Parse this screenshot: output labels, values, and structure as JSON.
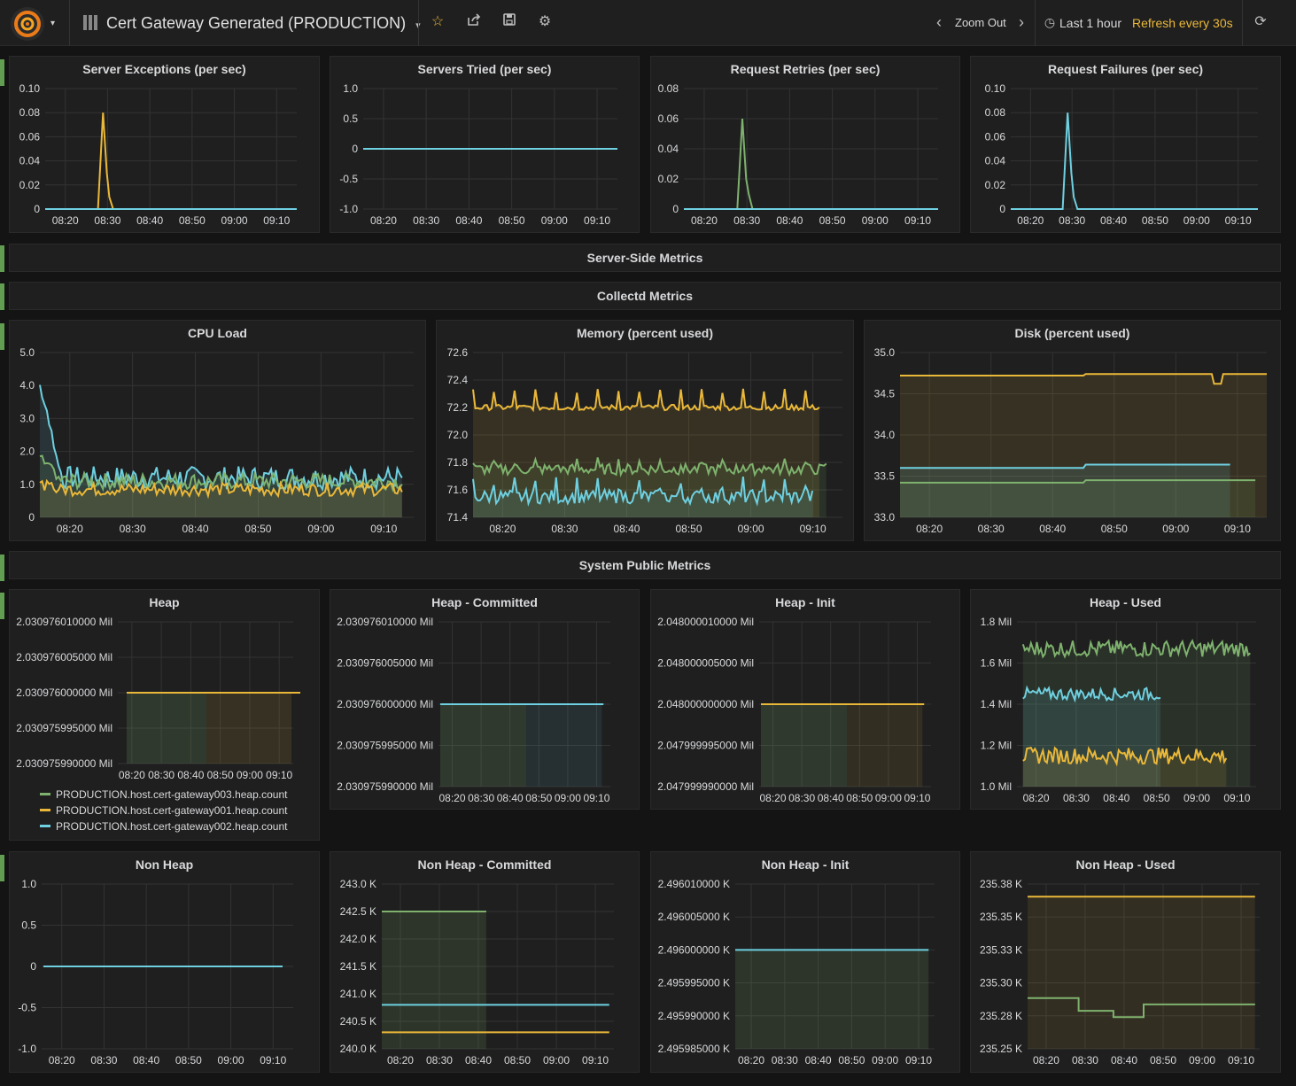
{
  "navbar": {
    "title": "Cert Gateway Generated (PRODUCTION)",
    "zoom_out": "Zoom Out",
    "time_range": "Last 1 hour",
    "refresh": "Refresh every 30s"
  },
  "colors": {
    "green": "#7eb26d",
    "yellow": "#eab839",
    "blue": "#6ed0e0",
    "accent": "#eb7b18"
  },
  "rows": {
    "server_side": "Server-Side Metrics",
    "collectd": "Collectd Metrics",
    "system_public": "System Public Metrics"
  },
  "legend": [
    {
      "label": "PRODUCTION.host.cert-gateway003.heap.count",
      "color": "#7eb26d"
    },
    {
      "label": "PRODUCTION.host.cert-gateway001.heap.count",
      "color": "#eab839"
    },
    {
      "label": "PRODUCTION.host.cert-gateway002.heap.count",
      "color": "#6ed0e0"
    }
  ],
  "chart_data": [
    {
      "id": "server-exceptions",
      "type": "line",
      "title": "Server Exceptions (per sec)",
      "x": [
        "08:20",
        "08:30",
        "08:40",
        "08:50",
        "09:00",
        "09:10"
      ],
      "y_ticks": [
        "0.10",
        "0.08",
        "0.06",
        "0.04",
        "0.02",
        "0"
      ],
      "ylim": [
        0,
        0.1
      ],
      "series": [
        {
          "color": "#eab839",
          "points": [
            [
              0,
              0
            ],
            [
              0.21,
              0
            ],
            [
              0.23,
              0.08
            ],
            [
              0.245,
              0.03
            ],
            [
              0.255,
              0.01
            ],
            [
              0.27,
              0
            ],
            [
              1,
              0
            ]
          ]
        },
        {
          "color": "#6ed0e0",
          "points": [
            [
              0,
              0
            ],
            [
              1,
              0
            ]
          ]
        }
      ]
    },
    {
      "id": "servers-tried",
      "type": "line",
      "title": "Servers Tried (per sec)",
      "x": [
        "08:20",
        "08:30",
        "08:40",
        "08:50",
        "09:00",
        "09:10"
      ],
      "y_ticks": [
        "1.0",
        "0.5",
        "0",
        "-0.5",
        "-1.0"
      ],
      "ylim": [
        -1,
        1
      ],
      "series": [
        {
          "color": "#6ed0e0",
          "points": [
            [
              0,
              0
            ],
            [
              1,
              0
            ]
          ]
        }
      ]
    },
    {
      "id": "request-retries",
      "type": "line",
      "title": "Request Retries (per sec)",
      "x": [
        "08:20",
        "08:30",
        "08:40",
        "08:50",
        "09:00",
        "09:10"
      ],
      "y_ticks": [
        "0.08",
        "0.06",
        "0.04",
        "0.02",
        "0"
      ],
      "ylim": [
        0,
        0.08
      ],
      "series": [
        {
          "color": "#7eb26d",
          "points": [
            [
              0,
              0
            ],
            [
              0.21,
              0
            ],
            [
              0.23,
              0.06
            ],
            [
              0.245,
              0.02
            ],
            [
              0.255,
              0.01
            ],
            [
              0.27,
              0
            ],
            [
              1,
              0
            ]
          ]
        },
        {
          "color": "#6ed0e0",
          "points": [
            [
              0,
              0
            ],
            [
              1,
              0
            ]
          ]
        }
      ]
    },
    {
      "id": "request-failures",
      "type": "line",
      "title": "Request Failures (per sec)",
      "x": [
        "08:20",
        "08:30",
        "08:40",
        "08:50",
        "09:00",
        "09:10"
      ],
      "y_ticks": [
        "0.10",
        "0.08",
        "0.06",
        "0.04",
        "0.02",
        "0"
      ],
      "ylim": [
        0,
        0.1
      ],
      "series": [
        {
          "color": "#6ed0e0",
          "points": [
            [
              0,
              0
            ],
            [
              0.21,
              0
            ],
            [
              0.23,
              0.08
            ],
            [
              0.245,
              0.03
            ],
            [
              0.255,
              0.01
            ],
            [
              0.27,
              0
            ],
            [
              1,
              0
            ]
          ]
        }
      ]
    },
    {
      "id": "cpu-load",
      "type": "area",
      "title": "CPU Load",
      "x": [
        "08:20",
        "08:30",
        "08:40",
        "08:50",
        "09:00",
        "09:10"
      ],
      "y_ticks": [
        "5.0",
        "4.0",
        "3.0",
        "2.0",
        "1.0",
        "0"
      ],
      "ylim": [
        0,
        5
      ],
      "series": [
        {
          "color": "#6ed0e0",
          "base": 1.2,
          "noise": 0.35,
          "start": 4.0
        },
        {
          "color": "#7eb26d",
          "base": 1.1,
          "noise": 0.25,
          "start": 1.8
        },
        {
          "color": "#eab839",
          "base": 0.85,
          "noise": 0.2,
          "start": 1.0
        }
      ]
    },
    {
      "id": "memory",
      "type": "area",
      "title": "Memory (percent used)",
      "x": [
        "08:20",
        "08:30",
        "08:40",
        "08:50",
        "09:00",
        "09:10"
      ],
      "y_ticks": [
        "72.6",
        "72.4",
        "72.2",
        "72.0",
        "71.8",
        "71.6",
        "71.4"
      ],
      "ylim": [
        71.4,
        72.6
      ],
      "series": [
        {
          "color": "#eab839",
          "base": 72.2,
          "noise": 0.02,
          "spikes": 0.12
        },
        {
          "color": "#7eb26d",
          "base": 71.75,
          "noise": 0.04,
          "spikes": 0.05
        },
        {
          "color": "#6ed0e0",
          "base": 71.55,
          "noise": 0.05,
          "spikes": 0.1
        }
      ]
    },
    {
      "id": "disk",
      "type": "area",
      "title": "Disk (percent used)",
      "x": [
        "08:20",
        "08:30",
        "08:40",
        "08:50",
        "09:00",
        "09:10"
      ],
      "y_ticks": [
        "35.0",
        "34.5",
        "34.0",
        "33.5",
        "33.0"
      ],
      "ylim": [
        33,
        35
      ],
      "series": [
        {
          "color": "#eab839",
          "base": 34.72,
          "noise": 0,
          "step": 0.02
        },
        {
          "color": "#6ed0e0",
          "base": 33.6,
          "noise": 0,
          "step": 0.04
        },
        {
          "color": "#7eb26d",
          "base": 33.42,
          "noise": 0,
          "step": 0.03
        }
      ]
    },
    {
      "id": "heap",
      "type": "area",
      "title": "Heap",
      "x": [
        "08:20",
        "08:30",
        "08:40",
        "08:50",
        "09:00",
        "09:10"
      ],
      "y_ticks": [
        "2.030976010000 Mil",
        "2.030976005000 Mil",
        "2.030976000000 Mil",
        "2.030975995000 Mil",
        "2.030975990000 Mil"
      ]
    },
    {
      "id": "heap-committed",
      "type": "area",
      "title": "Heap - Committed",
      "x": [
        "08:20",
        "08:30",
        "08:40",
        "08:50",
        "09:00",
        "09:10"
      ],
      "y_ticks": [
        "2.030976010000 Mil",
        "2.030976005000 Mil",
        "2.030976000000 Mil",
        "2.030975995000 Mil",
        "2.030975990000 Mil"
      ]
    },
    {
      "id": "heap-init",
      "type": "area",
      "title": "Heap - Init",
      "x": [
        "08:20",
        "08:30",
        "08:40",
        "08:50",
        "09:00",
        "09:10"
      ],
      "y_ticks": [
        "2.048000010000 Mil",
        "2.048000005000 Mil",
        "2.048000000000 Mil",
        "2.047999995000 Mil",
        "2.047999990000 Mil"
      ]
    },
    {
      "id": "heap-used",
      "type": "area",
      "title": "Heap - Used",
      "x": [
        "08:20",
        "08:30",
        "08:40",
        "08:50",
        "09:00",
        "09:10"
      ],
      "y_ticks": [
        "1.8 Mil",
        "1.6 Mil",
        "1.4 Mil",
        "1.2 Mil",
        "1.0 Mil"
      ],
      "ylim": [
        1.0,
        1.8
      ]
    },
    {
      "id": "non-heap",
      "type": "line",
      "title": "Non Heap",
      "x": [
        "08:20",
        "08:30",
        "08:40",
        "08:50",
        "09:00",
        "09:10"
      ],
      "y_ticks": [
        "1.0",
        "0.5",
        "0",
        "-0.5",
        "-1.0"
      ],
      "ylim": [
        -1,
        1
      ]
    },
    {
      "id": "non-heap-committed",
      "type": "area",
      "title": "Non Heap - Committed",
      "x": [
        "08:20",
        "08:30",
        "08:40",
        "08:50",
        "09:00",
        "09:10"
      ],
      "y_ticks": [
        "243.0 K",
        "242.5 K",
        "242.0 K",
        "241.5 K",
        "241.0 K",
        "240.5 K",
        "240.0 K"
      ],
      "ylim": [
        240,
        243
      ]
    },
    {
      "id": "non-heap-init",
      "type": "area",
      "title": "Non Heap - Init",
      "x": [
        "08:20",
        "08:30",
        "08:40",
        "08:50",
        "09:00",
        "09:10"
      ],
      "y_ticks": [
        "2.496010000 K",
        "2.496005000 K",
        "2.496000000 K",
        "2.495995000 K",
        "2.495990000 K",
        "2.495985000 K"
      ]
    },
    {
      "id": "non-heap-used",
      "type": "area",
      "title": "Non Heap - Used",
      "x": [
        "08:20",
        "08:30",
        "08:40",
        "08:50",
        "09:00",
        "09:10"
      ],
      "y_ticks": [
        "235.38 K",
        "235.35 K",
        "235.33 K",
        "235.30 K",
        "235.28 K",
        "235.25 K"
      ],
      "ylim": [
        235.25,
        235.38
      ]
    }
  ]
}
